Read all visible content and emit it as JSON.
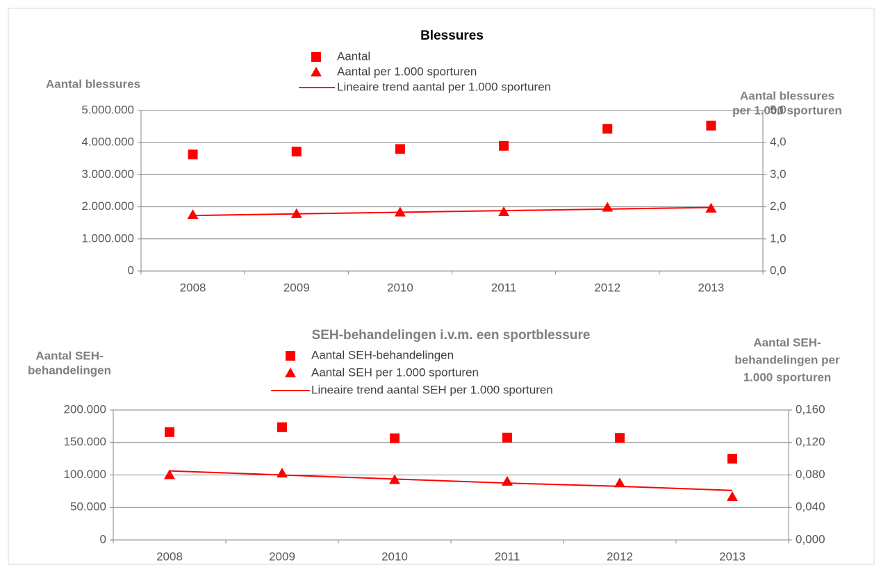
{
  "chart_data": [
    {
      "type": "line",
      "title": "Blessures",
      "title_color": "#000000",
      "y_label": [
        "Aantal blessures"
      ],
      "y2_label": [
        "Aantal blessures",
        "per 1.000 sporturen"
      ],
      "categories": [
        "2008",
        "2009",
        "2010",
        "2011",
        "2012",
        "2013"
      ],
      "ylim": [
        0,
        5000000
      ],
      "yticks": [
        0,
        {
          "value": 1000000,
          "label": "1.000.000"
        },
        {
          "value": 2000000,
          "label": "2.000.000"
        },
        {
          "value": 3000000,
          "label": "3.000.000"
        },
        {
          "value": 4000000,
          "label": "4.000.000"
        },
        {
          "value": 5000000,
          "label": "5.000.000"
        }
      ],
      "y2lim": [
        0,
        5
      ],
      "y2ticks": [
        {
          "value": 0,
          "label": "0,0"
        },
        {
          "value": 1,
          "label": "1,0"
        },
        {
          "value": 2,
          "label": "2,0"
        },
        {
          "value": 3,
          "label": "3,0"
        },
        {
          "value": 4,
          "label": "4,0"
        },
        {
          "value": 5,
          "label": "5,0"
        }
      ],
      "grid": true,
      "series": [
        {
          "name": "Aantal",
          "color": "#ff0000",
          "marker": "square",
          "values": [
            3630000,
            3720000,
            3800000,
            3900000,
            4430000,
            4530000
          ]
        },
        {
          "name": "Aantal per 1.000 sporturen",
          "color": "#ff0000",
          "marker": "triangle",
          "axis": "y2",
          "values": [
            1.75,
            1.78,
            1.83,
            1.84,
            1.98,
            1.95
          ]
        },
        {
          "name": "Lineaire trend aantal per 1.000 sporturen",
          "color": "#ff0000",
          "marker": "line",
          "axis": "y2",
          "values": [
            1.73,
            1.78,
            1.83,
            1.88,
            1.93,
            1.98
          ]
        }
      ]
    },
    {
      "type": "line",
      "title": "SEH-behandelingen i.v.m. een sportblessure",
      "title_color": "#7f7f7f",
      "y_label": [
        "Aantal SEH-",
        "behandelingen"
      ],
      "y2_label": [
        "Aantal SEH-",
        "behandelingen per",
        "1.000 sporturen"
      ],
      "categories": [
        "2008",
        "2009",
        "2010",
        "2011",
        "2012",
        "2013"
      ],
      "ylim": [
        0,
        200000
      ],
      "yticks": [
        0,
        {
          "value": 50000,
          "label": "50.000"
        },
        {
          "value": 100000,
          "label": "100.000"
        },
        {
          "value": 150000,
          "label": "150.000"
        },
        {
          "value": 200000,
          "label": "200.000"
        }
      ],
      "y2lim": [
        0,
        0.16
      ],
      "y2ticks": [
        {
          "value": 0,
          "label": "0,000"
        },
        {
          "value": 0.04,
          "label": "0,040"
        },
        {
          "value": 0.08,
          "label": "0,080"
        },
        {
          "value": 0.12,
          "label": "0,120"
        },
        {
          "value": 0.16,
          "label": "0,160"
        }
      ],
      "grid": true,
      "series": [
        {
          "name": "Aantal SEH-behandelingen",
          "color": "#ff0000",
          "marker": "square",
          "values": [
            166000,
            173500,
            156500,
            157500,
            157000,
            125000
          ]
        },
        {
          "name": "Aantal SEH per 1.000 sporturen",
          "color": "#ff0000",
          "marker": "triangle",
          "axis": "y2",
          "values": [
            0.08,
            0.082,
            0.074,
            0.072,
            0.07,
            0.053
          ]
        },
        {
          "name": "Lineaire trend aantal SEH per 1.000 sporturen",
          "color": "#ff0000",
          "marker": "line",
          "axis": "y2",
          "values": [
            0.085,
            0.08,
            0.075,
            0.07,
            0.066,
            0.061
          ]
        }
      ]
    }
  ]
}
